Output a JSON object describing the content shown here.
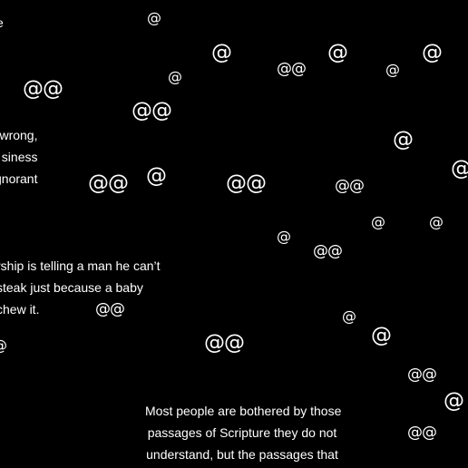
{
  "background_color": "#000000",
  "text_color": "#ffffff",
  "quotes": {
    "a": [
      "e"
    ],
    "b": [
      "wrong,",
      "siness",
      "gnorant"
    ],
    "c": [
      "rship is telling a man he can’t",
      "steak just because a baby",
      "chew it."
    ],
    "d": [
      "Most people are bothered by those",
      "passages of Scripture they do not",
      "understand, but the passages that"
    ]
  },
  "at_marks": [
    "@",
    "@",
    "@",
    "@@",
    "@",
    "@",
    "@",
    "@@",
    "@",
    "@@",
    "@",
    "@",
    "@@",
    "@@",
    "@@",
    "@",
    "@",
    "@",
    "@",
    "@@",
    "@@",
    "@",
    "@",
    "@@",
    "@",
    "@",
    "@@",
    "@",
    "@@"
  ]
}
